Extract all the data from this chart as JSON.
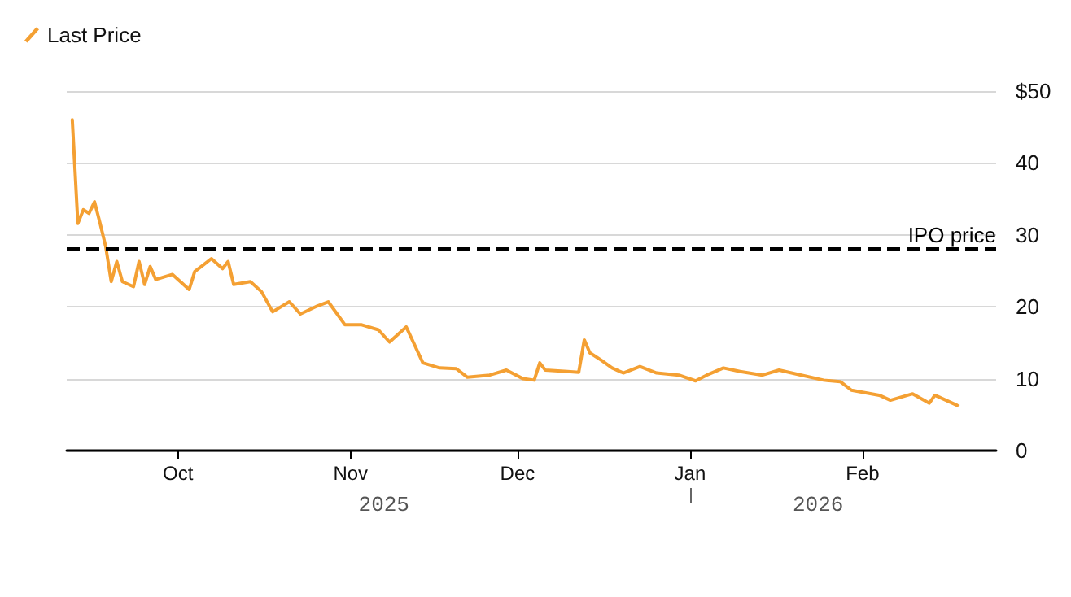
{
  "chart_data": {
    "type": "line",
    "x": [
      "2025-09-12",
      "2025-09-13",
      "2025-09-14",
      "2025-09-15",
      "2025-09-16",
      "2025-09-17",
      "2025-09-18",
      "2025-09-19",
      "2025-09-20",
      "2025-09-21",
      "2025-09-23",
      "2025-09-24",
      "2025-09-25",
      "2025-09-26",
      "2025-09-27",
      "2025-09-30",
      "2025-10-03",
      "2025-10-04",
      "2025-10-07",
      "2025-10-09",
      "2025-10-10",
      "2025-10-11",
      "2025-10-14",
      "2025-10-16",
      "2025-10-18",
      "2025-10-21",
      "2025-10-23",
      "2025-10-26",
      "2025-10-28",
      "2025-10-31",
      "2025-11-03",
      "2025-11-06",
      "2025-11-08",
      "2025-11-11",
      "2025-11-14",
      "2025-11-17",
      "2025-11-20",
      "2025-11-22",
      "2025-11-26",
      "2025-11-29",
      "2025-12-02",
      "2025-12-04",
      "2025-12-05",
      "2025-12-06",
      "2025-12-10",
      "2025-12-12",
      "2025-12-13",
      "2025-12-14",
      "2025-12-16",
      "2025-12-18",
      "2025-12-20",
      "2025-12-23",
      "2025-12-26",
      "2025-12-30",
      "2026-01-02",
      "2026-01-04",
      "2026-01-07",
      "2026-01-10",
      "2026-01-14",
      "2026-01-17",
      "2026-01-21",
      "2026-01-25",
      "2026-01-28",
      "2026-01-30",
      "2026-02-04",
      "2026-02-06",
      "2026-02-10",
      "2026-02-13",
      "2026-02-14",
      "2026-02-18"
    ],
    "series": [
      {
        "name": "Last Price",
        "color": "#f4a033",
        "values": [
          46.0,
          31.6,
          33.5,
          33.0,
          34.6,
          31.6,
          28.4,
          23.5,
          26.3,
          23.5,
          22.8,
          26.3,
          23.1,
          25.6,
          23.8,
          24.5,
          22.4,
          24.9,
          26.7,
          25.3,
          26.3,
          23.1,
          23.5,
          22.1,
          19.3,
          20.7,
          19.0,
          20.1,
          20.7,
          17.5,
          17.5,
          16.8,
          15.1,
          17.2,
          12.2,
          11.5,
          11.4,
          10.2,
          10.5,
          11.2,
          10.0,
          9.8,
          12.2,
          11.2,
          11.0,
          10.9,
          15.4,
          13.6,
          12.6,
          11.5,
          10.8,
          11.7,
          10.8,
          10.5,
          9.7,
          10.5,
          11.5,
          11.0,
          10.5,
          11.2,
          10.5,
          9.8,
          9.6,
          8.4,
          7.7,
          7.0,
          7.9,
          6.6,
          7.7,
          6.3
        ]
      }
    ],
    "xlim": [
      "2025-09-11",
      "2026-02-25"
    ],
    "xticks": [
      {
        "value": "2025-10-01",
        "label": "Oct"
      },
      {
        "value": "2025-11-01",
        "label": "Nov"
      },
      {
        "value": "2025-12-01",
        "label": "Dec"
      },
      {
        "value": "2026-01-01",
        "label": "Jan"
      },
      {
        "value": "2026-02-01",
        "label": "Feb"
      }
    ],
    "x2lim": [
      "2025-09-11",
      "2026-02-25"
    ],
    "x2ticks": [
      {
        "value": "2025-11-07",
        "label": "2025"
      },
      {
        "value": "2026-01-01",
        "label": null
      },
      {
        "value": "2026-01-24",
        "label": "2026"
      }
    ],
    "ylim": [
      0,
      50
    ],
    "yticks": [
      0,
      10,
      20,
      30,
      40,
      {
        "value": 50,
        "label": "$50"
      }
    ],
    "ref_lines": [
      {
        "axis": "y",
        "value": 28,
        "label": "IPO price",
        "color": "#000000",
        "line_style": "dashed"
      }
    ],
    "grid": "y",
    "legend": "top left",
    "marker": "none",
    "line_style": "solid"
  }
}
